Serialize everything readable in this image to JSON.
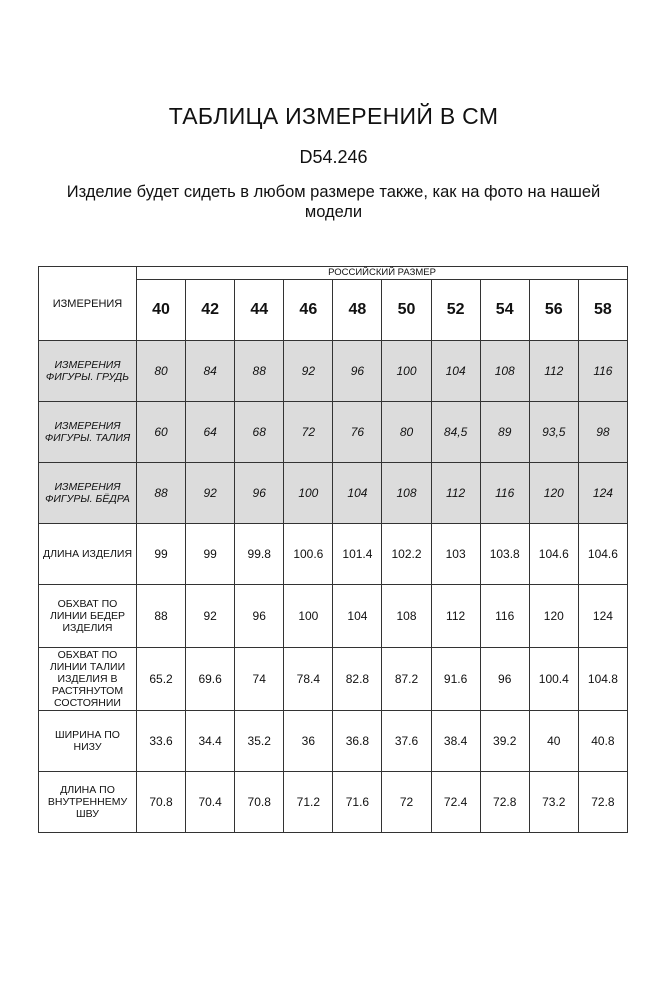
{
  "title": "ТАБЛИЦА ИЗМЕРЕНИЙ В СМ",
  "code": "D54.246",
  "subtitle": "Изделие будет сидеть в любом размере также, как на фото на нашей модели",
  "table": {
    "corner_label": "ИЗМЕРЕНИЯ",
    "size_group_label": "РОССИЙСКИЙ РАЗМЕР",
    "sizes": [
      "40",
      "42",
      "44",
      "46",
      "48",
      "50",
      "52",
      "54",
      "56",
      "58"
    ],
    "figure_rows": [
      {
        "label": "ИЗМЕРЕНИЯ ФИГУРЫ. ГРУДЬ",
        "values": [
          "80",
          "84",
          "88",
          "92",
          "96",
          "100",
          "104",
          "108",
          "112",
          "116"
        ]
      },
      {
        "label": "ИЗМЕРЕНИЯ ФИГУРЫ. ТАЛИЯ",
        "values": [
          "60",
          "64",
          "68",
          "72",
          "76",
          "80",
          "84,5",
          "89",
          "93,5",
          "98"
        ]
      },
      {
        "label": "ИЗМЕРЕНИЯ ФИГУРЫ. БЁДРА",
        "values": [
          "88",
          "92",
          "96",
          "100",
          "104",
          "108",
          "112",
          "116",
          "120",
          "124"
        ]
      }
    ],
    "garment_rows": [
      {
        "label": "ДЛИНА ИЗДЕЛИЯ",
        "values": [
          "99",
          "99",
          "99.8",
          "100.6",
          "101.4",
          "102.2",
          "103",
          "103.8",
          "104.6",
          "104.6"
        ]
      },
      {
        "label": "ОБХВАТ ПО ЛИНИИ БЕДЕР ИЗДЕЛИЯ",
        "values": [
          "88",
          "92",
          "96",
          "100",
          "104",
          "108",
          "112",
          "116",
          "120",
          "124"
        ]
      },
      {
        "label": "ОБХВАТ ПО ЛИНИИ ТАЛИИ ИЗДЕЛИЯ В РАСТЯНУТОМ СОСТОЯНИИ",
        "values": [
          "65.2",
          "69.6",
          "74",
          "78.4",
          "82.8",
          "87.2",
          "91.6",
          "96",
          "100.4",
          "104.8"
        ]
      },
      {
        "label": "ШИРИНА ПО НИЗУ",
        "values": [
          "33.6",
          "34.4",
          "35.2",
          "36",
          "36.8",
          "37.6",
          "38.4",
          "39.2",
          "40",
          "40.8"
        ]
      },
      {
        "label": "ДЛИНА ПО ВНУТРЕННЕМУ ШВУ",
        "values": [
          "70.8",
          "70.4",
          "70.8",
          "71.2",
          "71.6",
          "72",
          "72.4",
          "72.8",
          "73.2",
          "72.8"
        ]
      }
    ],
    "colors": {
      "figure_row_bg": "#dcdcdc",
      "border": "#333333"
    }
  }
}
